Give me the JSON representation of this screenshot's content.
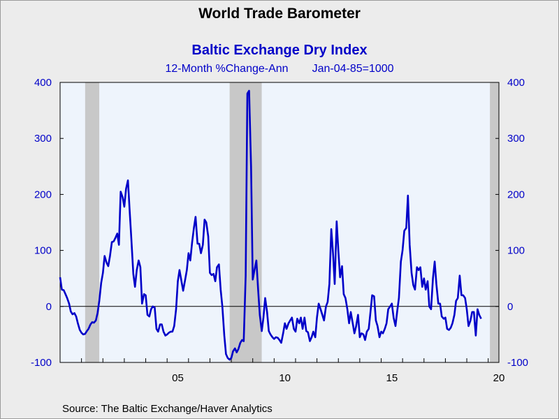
{
  "colors": {
    "line": "#0000c8",
    "plot_bg": "#eef4fc",
    "recession": "#c8c8c8",
    "page_bg": "#ececec"
  },
  "header": {
    "title": "World Trade Barometer",
    "subtitle": "Baltic Exchange Dry Index",
    "units": "12-Month %Change-Ann",
    "base": "Jan-04-85=1000"
  },
  "footer": {
    "source": "Source:  The Baltic Exchange/Haver Analytics"
  },
  "chart_data": {
    "type": "line",
    "title": "Baltic Exchange Dry Index",
    "ylabel": "12-Month %Change-Ann",
    "ylim": [
      -100,
      400
    ],
    "xlim": [
      2000.0,
      2020.5
    ],
    "y_ticks": [
      400,
      300,
      200,
      100,
      0,
      -100
    ],
    "x_ticks": [
      {
        "label": "05",
        "x": 2005.5
      },
      {
        "label": "10",
        "x": 2010.5
      },
      {
        "label": "15",
        "x": 2015.5
      },
      {
        "label": "20",
        "x": 2020.5
      }
    ],
    "grid": false,
    "legend": "none",
    "recession_shading": [
      [
        2001.17,
        2001.83
      ],
      [
        2007.92,
        2009.42
      ],
      [
        2020.08,
        2020.5
      ]
    ],
    "series": [
      {
        "values": [
          [
            2000.0,
            52
          ],
          [
            2000.08,
            30
          ],
          [
            2000.17,
            29
          ],
          [
            2000.25,
            22
          ],
          [
            2000.33,
            15
          ],
          [
            2000.42,
            5
          ],
          [
            2000.5,
            -9
          ],
          [
            2000.58,
            -14
          ],
          [
            2000.67,
            -12
          ],
          [
            2000.75,
            -18
          ],
          [
            2000.83,
            -30
          ],
          [
            2000.92,
            -42
          ],
          [
            2001.0,
            -47
          ],
          [
            2001.08,
            -50
          ],
          [
            2001.17,
            -49
          ],
          [
            2001.25,
            -44
          ],
          [
            2001.33,
            -40
          ],
          [
            2001.42,
            -32
          ],
          [
            2001.5,
            -28
          ],
          [
            2001.58,
            -29
          ],
          [
            2001.67,
            -25
          ],
          [
            2001.75,
            -12
          ],
          [
            2001.83,
            10
          ],
          [
            2001.92,
            42
          ],
          [
            2002.0,
            60
          ],
          [
            2002.08,
            90
          ],
          [
            2002.17,
            78
          ],
          [
            2002.25,
            72
          ],
          [
            2002.33,
            90
          ],
          [
            2002.42,
            115
          ],
          [
            2002.5,
            116
          ],
          [
            2002.58,
            122
          ],
          [
            2002.67,
            130
          ],
          [
            2002.75,
            110
          ],
          [
            2002.83,
            205
          ],
          [
            2002.92,
            195
          ],
          [
            2003.0,
            178
          ],
          [
            2003.08,
            210
          ],
          [
            2003.17,
            225
          ],
          [
            2003.25,
            170
          ],
          [
            2003.33,
            120
          ],
          [
            2003.42,
            58
          ],
          [
            2003.5,
            35
          ],
          [
            2003.58,
            65
          ],
          [
            2003.67,
            82
          ],
          [
            2003.75,
            70
          ],
          [
            2003.83,
            5
          ],
          [
            2003.92,
            22
          ],
          [
            2004.0,
            20
          ],
          [
            2004.08,
            -15
          ],
          [
            2004.17,
            -18
          ],
          [
            2004.25,
            -5
          ],
          [
            2004.33,
            0
          ],
          [
            2004.42,
            -2
          ],
          [
            2004.5,
            -40
          ],
          [
            2004.58,
            -45
          ],
          [
            2004.67,
            -32
          ],
          [
            2004.75,
            -32
          ],
          [
            2004.83,
            -45
          ],
          [
            2004.92,
            -52
          ],
          [
            2005.0,
            -50
          ],
          [
            2005.08,
            -47
          ],
          [
            2005.17,
            -45
          ],
          [
            2005.25,
            -45
          ],
          [
            2005.33,
            -35
          ],
          [
            2005.42,
            -5
          ],
          [
            2005.5,
            45
          ],
          [
            2005.58,
            65
          ],
          [
            2005.67,
            45
          ],
          [
            2005.75,
            28
          ],
          [
            2005.83,
            45
          ],
          [
            2005.92,
            65
          ],
          [
            2006.0,
            95
          ],
          [
            2006.08,
            82
          ],
          [
            2006.17,
            115
          ],
          [
            2006.25,
            140
          ],
          [
            2006.33,
            160
          ],
          [
            2006.42,
            112
          ],
          [
            2006.5,
            112
          ],
          [
            2006.58,
            95
          ],
          [
            2006.67,
            110
          ],
          [
            2006.75,
            155
          ],
          [
            2006.83,
            150
          ],
          [
            2006.92,
            125
          ],
          [
            2007.0,
            60
          ],
          [
            2007.08,
            56
          ],
          [
            2007.17,
            58
          ],
          [
            2007.25,
            45
          ],
          [
            2007.33,
            70
          ],
          [
            2007.42,
            75
          ],
          [
            2007.5,
            30
          ],
          [
            2007.58,
            0
          ],
          [
            2007.67,
            -52
          ],
          [
            2007.75,
            -85
          ],
          [
            2007.83,
            -92
          ],
          [
            2007.92,
            -95
          ],
          [
            2008.0,
            -92
          ],
          [
            2008.08,
            -80
          ],
          [
            2008.17,
            -75
          ],
          [
            2008.25,
            -82
          ],
          [
            2008.33,
            -76
          ],
          [
            2008.42,
            -65
          ],
          [
            2008.5,
            -60
          ],
          [
            2008.58,
            -62
          ],
          [
            2008.67,
            55
          ],
          [
            2008.75,
            380
          ],
          [
            2008.83,
            385
          ],
          [
            2008.92,
            250
          ],
          [
            2009.0,
            48
          ],
          [
            2009.08,
            65
          ],
          [
            2009.17,
            82
          ],
          [
            2009.25,
            30
          ],
          [
            2009.33,
            -15
          ],
          [
            2009.42,
            -44
          ],
          [
            2009.5,
            -20
          ],
          [
            2009.58,
            15
          ],
          [
            2009.67,
            -10
          ],
          [
            2009.75,
            -44
          ],
          [
            2009.83,
            -50
          ],
          [
            2009.92,
            -55
          ],
          [
            2010.0,
            -58
          ],
          [
            2010.08,
            -55
          ],
          [
            2010.17,
            -56
          ],
          [
            2010.25,
            -60
          ],
          [
            2010.33,
            -65
          ],
          [
            2010.42,
            -48
          ],
          [
            2010.5,
            -30
          ],
          [
            2010.58,
            -40
          ],
          [
            2010.67,
            -30
          ],
          [
            2010.75,
            -25
          ],
          [
            2010.83,
            -20
          ],
          [
            2010.92,
            -40
          ],
          [
            2011.0,
            -45
          ],
          [
            2011.08,
            -22
          ],
          [
            2011.17,
            -30
          ],
          [
            2011.25,
            -20
          ],
          [
            2011.33,
            -40
          ],
          [
            2011.42,
            -20
          ],
          [
            2011.5,
            -44
          ],
          [
            2011.58,
            -46
          ],
          [
            2011.67,
            -62
          ],
          [
            2011.75,
            -55
          ],
          [
            2011.83,
            -45
          ],
          [
            2011.92,
            -55
          ],
          [
            2012.0,
            -20
          ],
          [
            2012.08,
            5
          ],
          [
            2012.17,
            -5
          ],
          [
            2012.25,
            -15
          ],
          [
            2012.33,
            -25
          ],
          [
            2012.42,
            0
          ],
          [
            2012.5,
            8
          ],
          [
            2012.58,
            40
          ],
          [
            2012.67,
            138
          ],
          [
            2012.75,
            95
          ],
          [
            2012.83,
            40
          ],
          [
            2012.92,
            152
          ],
          [
            2013.0,
            100
          ],
          [
            2013.08,
            52
          ],
          [
            2013.17,
            72
          ],
          [
            2013.25,
            22
          ],
          [
            2013.33,
            15
          ],
          [
            2013.42,
            -5
          ],
          [
            2013.5,
            -30
          ],
          [
            2013.58,
            -10
          ],
          [
            2013.67,
            -30
          ],
          [
            2013.75,
            -48
          ],
          [
            2013.83,
            -35
          ],
          [
            2013.92,
            -15
          ],
          [
            2014.0,
            -55
          ],
          [
            2014.08,
            -48
          ],
          [
            2014.17,
            -50
          ],
          [
            2014.25,
            -60
          ],
          [
            2014.33,
            -45
          ],
          [
            2014.42,
            -40
          ],
          [
            2014.5,
            -10
          ],
          [
            2014.58,
            20
          ],
          [
            2014.67,
            18
          ],
          [
            2014.75,
            -25
          ],
          [
            2014.83,
            -35
          ],
          [
            2014.92,
            -55
          ],
          [
            2015.0,
            -45
          ],
          [
            2015.08,
            -48
          ],
          [
            2015.17,
            -40
          ],
          [
            2015.25,
            -30
          ],
          [
            2015.33,
            -5
          ],
          [
            2015.42,
            0
          ],
          [
            2015.5,
            5
          ],
          [
            2015.58,
            -20
          ],
          [
            2015.67,
            -35
          ],
          [
            2015.75,
            -8
          ],
          [
            2015.83,
            15
          ],
          [
            2015.92,
            80
          ],
          [
            2016.0,
            100
          ],
          [
            2016.08,
            135
          ],
          [
            2016.17,
            140
          ],
          [
            2016.25,
            198
          ],
          [
            2016.33,
            110
          ],
          [
            2016.42,
            60
          ],
          [
            2016.5,
            38
          ],
          [
            2016.58,
            30
          ],
          [
            2016.67,
            70
          ],
          [
            2016.75,
            65
          ],
          [
            2016.83,
            70
          ],
          [
            2016.92,
            35
          ],
          [
            2017.0,
            50
          ],
          [
            2017.08,
            30
          ],
          [
            2017.17,
            45
          ],
          [
            2017.25,
            0
          ],
          [
            2017.33,
            -5
          ],
          [
            2017.42,
            50
          ],
          [
            2017.5,
            80
          ],
          [
            2017.58,
            40
          ],
          [
            2017.67,
            5
          ],
          [
            2017.75,
            5
          ],
          [
            2017.83,
            -18
          ],
          [
            2017.92,
            -22
          ],
          [
            2018.0,
            -20
          ],
          [
            2018.08,
            -40
          ],
          [
            2018.17,
            -42
          ],
          [
            2018.25,
            -38
          ],
          [
            2018.33,
            -30
          ],
          [
            2018.42,
            -15
          ],
          [
            2018.5,
            10
          ],
          [
            2018.58,
            15
          ],
          [
            2018.67,
            55
          ],
          [
            2018.75,
            20
          ],
          [
            2018.83,
            20
          ],
          [
            2018.92,
            15
          ],
          [
            2019.0,
            -5
          ],
          [
            2019.08,
            -35
          ],
          [
            2019.17,
            -25
          ],
          [
            2019.25,
            -10
          ],
          [
            2019.33,
            -10
          ],
          [
            2019.42,
            -52
          ],
          [
            2019.5,
            -5
          ],
          [
            2019.58,
            -15
          ],
          [
            2019.67,
            -22
          ]
        ]
      }
    ]
  }
}
